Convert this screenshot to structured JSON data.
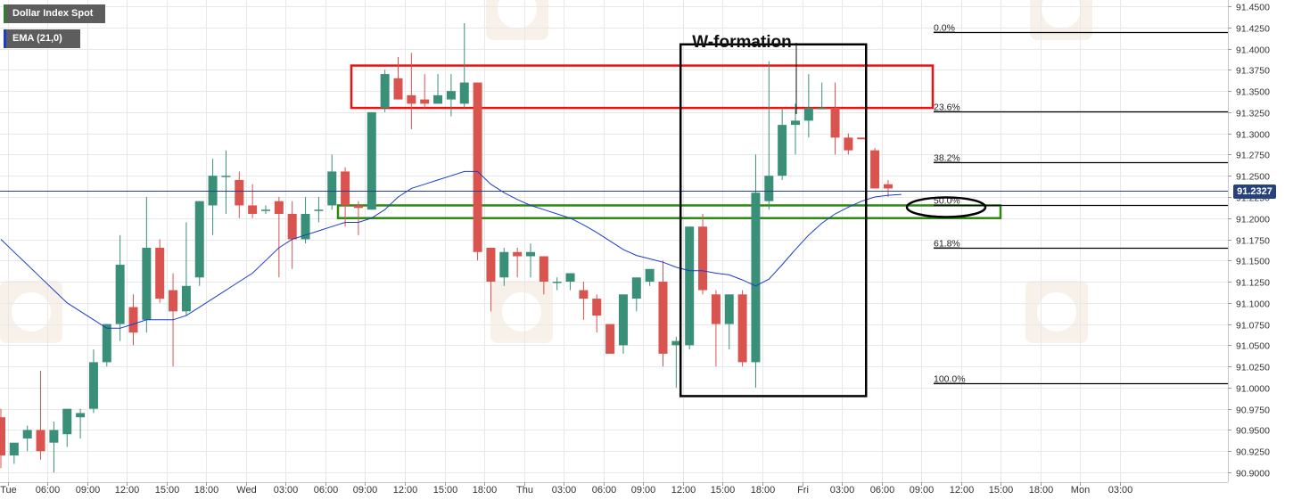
{
  "legend": {
    "instrument": "Dollar Index Spot",
    "indicator": "EMA (21,0)",
    "instrument_color": "#2e7d32",
    "indicator_color": "#1a3ccc"
  },
  "last_price": "91.2327",
  "colors": {
    "up": "#3a8f78",
    "down": "#d9534f",
    "ema": "#1a3ccc",
    "resistance_zone": "#ee1111",
    "support_zone": "#2a8a10",
    "w_box": "#000000",
    "current_price_line": "#27427a",
    "fib_line": "#000000",
    "grid": "#e8e8e8"
  },
  "annotations": {
    "w_formation_label": "W-formation"
  },
  "chart_data": {
    "type": "candlestick",
    "ylim": [
      90.9,
      91.45
    ],
    "y_ticks": [
      "91.4500",
      "91.4250",
      "91.4000",
      "91.3750",
      "91.3500",
      "91.3250",
      "91.3000",
      "91.2750",
      "91.2500",
      "91.2250",
      "91.2000",
      "91.1750",
      "91.1500",
      "91.1250",
      "91.1000",
      "91.0750",
      "91.0500",
      "91.0250",
      "91.0000",
      "90.9750",
      "90.9500",
      "90.9250",
      "90.9000"
    ],
    "x_ticks": [
      "Tue",
      "06:00",
      "09:00",
      "12:00",
      "15:00",
      "18:00",
      "Wed",
      "03:00",
      "06:00",
      "09:00",
      "12:00",
      "15:00",
      "18:00",
      "Thu",
      "03:00",
      "06:00",
      "09:00",
      "12:00",
      "15:00",
      "18:00",
      "Fri",
      "03:00",
      "06:00",
      "09:00",
      "12:00",
      "15:00",
      "18:00",
      "Mon",
      "03:00"
    ],
    "interval_hours": 1,
    "candles": [
      {
        "o": 90.965,
        "h": 90.975,
        "l": 90.905,
        "c": 90.92
      },
      {
        "o": 90.92,
        "h": 90.935,
        "l": 90.91,
        "c": 90.935
      },
      {
        "o": 90.94,
        "h": 90.955,
        "l": 90.925,
        "c": 90.95
      },
      {
        "o": 90.95,
        "h": 91.02,
        "l": 90.915,
        "c": 90.925
      },
      {
        "o": 90.935,
        "h": 90.96,
        "l": 90.9,
        "c": 90.95
      },
      {
        "o": 90.945,
        "h": 90.975,
        "l": 90.93,
        "c": 90.975
      },
      {
        "o": 90.965,
        "h": 90.975,
        "l": 90.94,
        "c": 90.97
      },
      {
        "o": 90.975,
        "h": 91.045,
        "l": 90.97,
        "c": 91.03
      },
      {
        "o": 91.03,
        "h": 91.075,
        "l": 91.025,
        "c": 91.075
      },
      {
        "o": 91.075,
        "h": 91.18,
        "l": 91.055,
        "c": 91.145
      },
      {
        "o": 91.095,
        "h": 91.11,
        "l": 91.05,
        "c": 91.065
      },
      {
        "o": 91.08,
        "h": 91.225,
        "l": 91.065,
        "c": 91.165
      },
      {
        "o": 91.165,
        "h": 91.175,
        "l": 91.1,
        "c": 91.105
      },
      {
        "o": 91.115,
        "h": 91.135,
        "l": 91.025,
        "c": 91.09
      },
      {
        "o": 91.09,
        "h": 91.195,
        "l": 91.085,
        "c": 91.12
      },
      {
        "o": 91.13,
        "h": 91.22,
        "l": 91.12,
        "c": 91.22
      },
      {
        "o": 91.215,
        "h": 91.27,
        "l": 91.18,
        "c": 91.25
      },
      {
        "o": 91.25,
        "h": 91.28,
        "l": 91.205,
        "c": 91.25
      },
      {
        "o": 91.245,
        "h": 91.255,
        "l": 91.2,
        "c": 91.215
      },
      {
        "o": 91.215,
        "h": 91.24,
        "l": 91.2,
        "c": 91.205
      },
      {
        "o": 91.21,
        "h": 91.215,
        "l": 91.205,
        "c": 91.21
      },
      {
        "o": 91.22,
        "h": 91.225,
        "l": 91.13,
        "c": 91.205
      },
      {
        "o": 91.205,
        "h": 91.22,
        "l": 91.14,
        "c": 91.175
      },
      {
        "o": 91.175,
        "h": 91.225,
        "l": 91.17,
        "c": 91.205
      },
      {
        "o": 91.21,
        "h": 91.225,
        "l": 91.195,
        "c": 91.21
      },
      {
        "o": 91.215,
        "h": 91.275,
        "l": 91.21,
        "c": 91.255
      },
      {
        "o": 91.255,
        "h": 91.26,
        "l": 91.19,
        "c": 91.215
      },
      {
        "o": 91.215,
        "h": 91.22,
        "l": 91.18,
        "c": 91.212
      },
      {
        "o": 91.21,
        "h": 91.325,
        "l": 91.21,
        "c": 91.325
      },
      {
        "o": 91.33,
        "h": 91.375,
        "l": 91.325,
        "c": 91.37
      },
      {
        "o": 91.365,
        "h": 91.39,
        "l": 91.34,
        "c": 91.34
      },
      {
        "o": 91.345,
        "h": 91.395,
        "l": 91.305,
        "c": 91.335
      },
      {
        "o": 91.34,
        "h": 91.37,
        "l": 91.33,
        "c": 91.335
      },
      {
        "o": 91.335,
        "h": 91.37,
        "l": 91.335,
        "c": 91.345
      },
      {
        "o": 91.34,
        "h": 91.37,
        "l": 91.32,
        "c": 91.35
      },
      {
        "o": 91.335,
        "h": 91.43,
        "l": 91.33,
        "c": 91.36
      },
      {
        "o": 91.36,
        "h": 91.36,
        "l": 91.15,
        "c": 91.16
      },
      {
        "o": 91.165,
        "h": 91.165,
        "l": 91.09,
        "c": 91.125
      },
      {
        "o": 91.13,
        "h": 91.165,
        "l": 91.12,
        "c": 91.16
      },
      {
        "o": 91.16,
        "h": 91.165,
        "l": 91.13,
        "c": 91.155
      },
      {
        "o": 91.155,
        "h": 91.17,
        "l": 91.13,
        "c": 91.16
      },
      {
        "o": 91.155,
        "h": 91.155,
        "l": 91.11,
        "c": 91.125
      },
      {
        "o": 91.125,
        "h": 91.13,
        "l": 91.115,
        "c": 91.125
      },
      {
        "o": 91.125,
        "h": 91.135,
        "l": 91.115,
        "c": 91.135
      },
      {
        "o": 91.115,
        "h": 91.125,
        "l": 91.08,
        "c": 91.105
      },
      {
        "o": 91.105,
        "h": 91.11,
        "l": 91.065,
        "c": 91.085
      },
      {
        "o": 91.075,
        "h": 91.075,
        "l": 91.04,
        "c": 91.04
      },
      {
        "o": 91.05,
        "h": 91.11,
        "l": 91.04,
        "c": 91.11
      },
      {
        "o": 91.105,
        "h": 91.13,
        "l": 91.09,
        "c": 91.13
      },
      {
        "o": 91.125,
        "h": 91.14,
        "l": 91.12,
        "c": 91.14
      },
      {
        "o": 91.125,
        "h": 91.15,
        "l": 91.025,
        "c": 91.04
      },
      {
        "o": 91.05,
        "h": 91.06,
        "l": 91.0,
        "c": 91.055
      },
      {
        "o": 91.05,
        "h": 91.19,
        "l": 91.045,
        "c": 91.19
      },
      {
        "o": 91.19,
        "h": 91.205,
        "l": 91.11,
        "c": 91.115
      },
      {
        "o": 91.11,
        "h": 91.115,
        "l": 91.025,
        "c": 91.075
      },
      {
        "o": 91.075,
        "h": 91.11,
        "l": 91.045,
        "c": 91.11
      },
      {
        "o": 91.11,
        "h": 91.115,
        "l": 91.025,
        "c": 91.03
      },
      {
        "o": 91.03,
        "h": 91.275,
        "l": 91.0,
        "c": 91.23
      },
      {
        "o": 91.22,
        "h": 91.385,
        "l": 91.21,
        "c": 91.25
      },
      {
        "o": 91.25,
        "h": 91.33,
        "l": 91.245,
        "c": 91.31
      },
      {
        "o": 91.31,
        "h": 91.335,
        "l": 91.275,
        "c": 91.315
      },
      {
        "o": 91.315,
        "h": 91.37,
        "l": 91.295,
        "c": 91.33
      },
      {
        "o": 91.33,
        "h": 91.36,
        "l": 91.33,
        "c": 91.33
      },
      {
        "o": 91.33,
        "h": 91.36,
        "l": 91.275,
        "c": 91.295
      },
      {
        "o": 91.295,
        "h": 91.3,
        "l": 91.275,
        "c": 91.28
      },
      {
        "o": 91.295,
        "h": 91.295,
        "l": 91.293,
        "c": 91.293
      },
      {
        "o": 91.28,
        "h": 91.283,
        "l": 91.235,
        "c": 91.235
      },
      {
        "o": 91.24,
        "h": 91.245,
        "l": 91.225,
        "c": 91.235
      }
    ],
    "ema_21": [
      91.175,
      91.16,
      91.145,
      91.13,
      91.115,
      91.1,
      91.09,
      91.08,
      91.07,
      91.07,
      91.075,
      91.08,
      91.08,
      91.08,
      91.085,
      91.095,
      91.105,
      91.115,
      91.125,
      91.135,
      91.15,
      91.165,
      91.175,
      91.18,
      91.185,
      91.19,
      91.195,
      91.195,
      91.2,
      91.21,
      91.225,
      91.235,
      91.24,
      91.245,
      91.25,
      91.255,
      91.255,
      91.24,
      91.23,
      91.222,
      91.215,
      91.21,
      91.205,
      91.2,
      91.192,
      91.183,
      91.173,
      91.163,
      91.156,
      91.152,
      91.148,
      91.142,
      91.138,
      91.138,
      91.135,
      91.133,
      91.127,
      91.12,
      91.128,
      91.145,
      91.163,
      91.18,
      91.194,
      91.205,
      91.213,
      91.22,
      91.225,
      91.227,
      91.228
    ],
    "fibonacci": [
      {
        "label": "0.0%",
        "value": 91.42
      },
      {
        "label": "23.6%",
        "value": 91.326
      },
      {
        "label": "38.2%",
        "value": 91.266
      },
      {
        "label": "50.0%",
        "value": 91.215
      },
      {
        "label": "61.8%",
        "value": 91.165
      },
      {
        "label": "100.0%",
        "value": 91.005
      }
    ],
    "resistance_zone": [
      91.33,
      91.38
    ],
    "support_zone": [
      91.2,
      91.215
    ],
    "w_formation_box": {
      "from_candle": 52,
      "to_candle": 65,
      "low": 90.99,
      "high": 91.405
    }
  }
}
